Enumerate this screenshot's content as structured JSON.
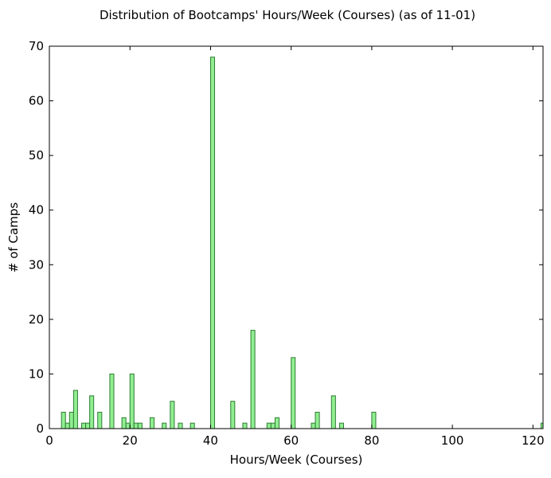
{
  "chart_data": {
    "type": "bar",
    "title": "Distribution of Bootcamps' Hours/Week (Courses) (as of 11-01)",
    "xlabel": "Hours/Week (Courses)",
    "ylabel": "# of Camps",
    "xlim": [
      0,
      122.5
    ],
    "ylim": [
      0,
      70
    ],
    "grid": false,
    "bin_width": 1,
    "x_ticks": [
      0,
      20,
      40,
      60,
      80,
      100,
      120
    ],
    "y_ticks": [
      0,
      10,
      20,
      30,
      40,
      50,
      60,
      70
    ],
    "bar_color": "#90ee90",
    "edge_color": "#2e7d32",
    "bins": [
      {
        "x": 3,
        "count": 3
      },
      {
        "x": 4,
        "count": 1
      },
      {
        "x": 5,
        "count": 3
      },
      {
        "x": 6,
        "count": 7
      },
      {
        "x": 8,
        "count": 1
      },
      {
        "x": 9,
        "count": 1
      },
      {
        "x": 10,
        "count": 6
      },
      {
        "x": 12,
        "count": 3
      },
      {
        "x": 15,
        "count": 10
      },
      {
        "x": 18,
        "count": 2
      },
      {
        "x": 19,
        "count": 1
      },
      {
        "x": 20,
        "count": 10
      },
      {
        "x": 21,
        "count": 1
      },
      {
        "x": 22,
        "count": 1
      },
      {
        "x": 25,
        "count": 2
      },
      {
        "x": 28,
        "count": 1
      },
      {
        "x": 30,
        "count": 5
      },
      {
        "x": 32,
        "count": 1
      },
      {
        "x": 35,
        "count": 1
      },
      {
        "x": 40,
        "count": 68
      },
      {
        "x": 45,
        "count": 5
      },
      {
        "x": 48,
        "count": 1
      },
      {
        "x": 50,
        "count": 18
      },
      {
        "x": 54,
        "count": 1
      },
      {
        "x": 55,
        "count": 1
      },
      {
        "x": 56,
        "count": 2
      },
      {
        "x": 60,
        "count": 13
      },
      {
        "x": 65,
        "count": 1
      },
      {
        "x": 66,
        "count": 3
      },
      {
        "x": 70,
        "count": 6
      },
      {
        "x": 72,
        "count": 1
      },
      {
        "x": 80,
        "count": 3
      },
      {
        "x": 122,
        "count": 1
      }
    ]
  }
}
